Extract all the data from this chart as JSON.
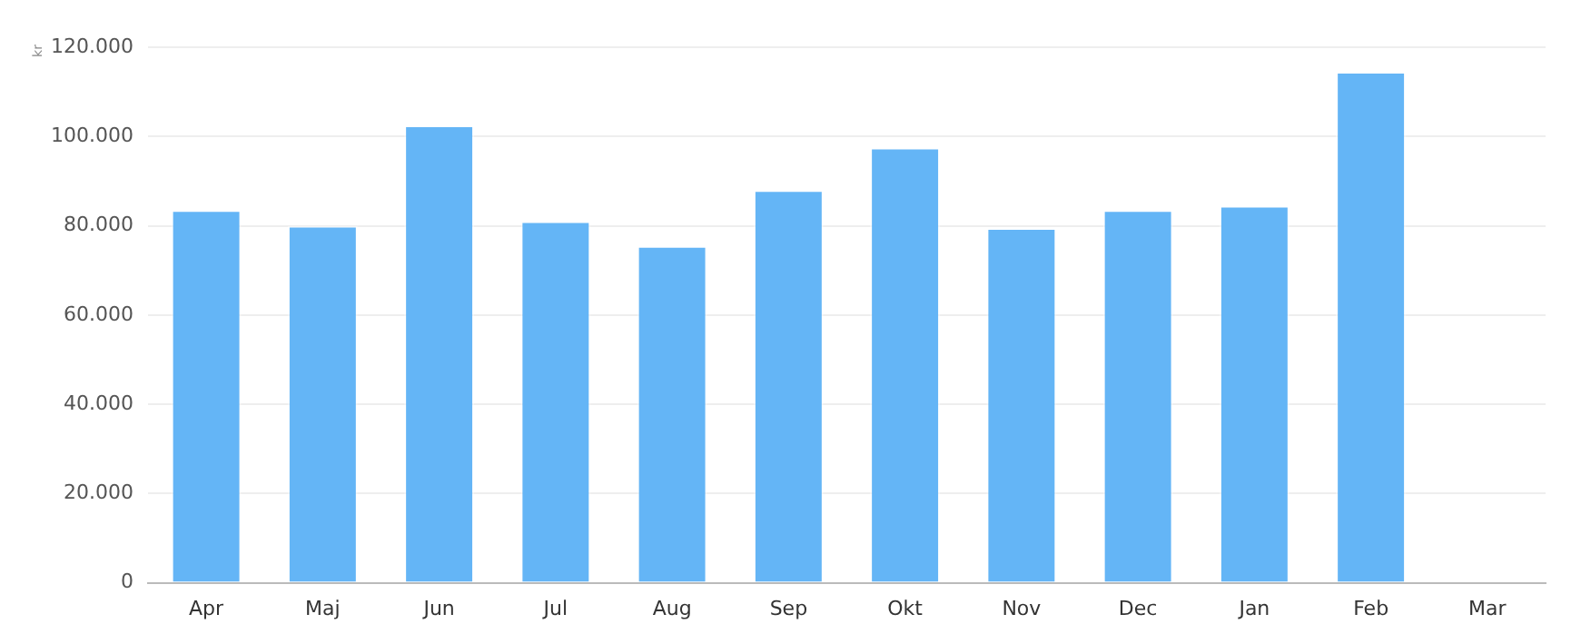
{
  "chart_data": {
    "type": "bar",
    "ylabel": "kr",
    "categories": [
      "Apr",
      "Maj",
      "Jun",
      "Jul",
      "Aug",
      "Sep",
      "Okt",
      "Nov",
      "Dec",
      "Jan",
      "Feb",
      "Mar"
    ],
    "values": [
      83500,
      80000,
      102500,
      81000,
      75500,
      88000,
      97500,
      79500,
      83500,
      84500,
      114500,
      null
    ],
    "color": "#64b5f6",
    "ylim": [
      0,
      120000
    ],
    "yticks": [
      {
        "value": 0,
        "label": "0"
      },
      {
        "value": 20000,
        "label": "20.000"
      },
      {
        "value": 40000,
        "label": "40.000"
      },
      {
        "value": 60000,
        "label": "60.000"
      },
      {
        "value": 80000,
        "label": "80.000"
      },
      {
        "value": 100000,
        "label": "100.000"
      },
      {
        "value": 120000,
        "label": "120.000"
      }
    ],
    "grid": "y",
    "legend": false
  }
}
